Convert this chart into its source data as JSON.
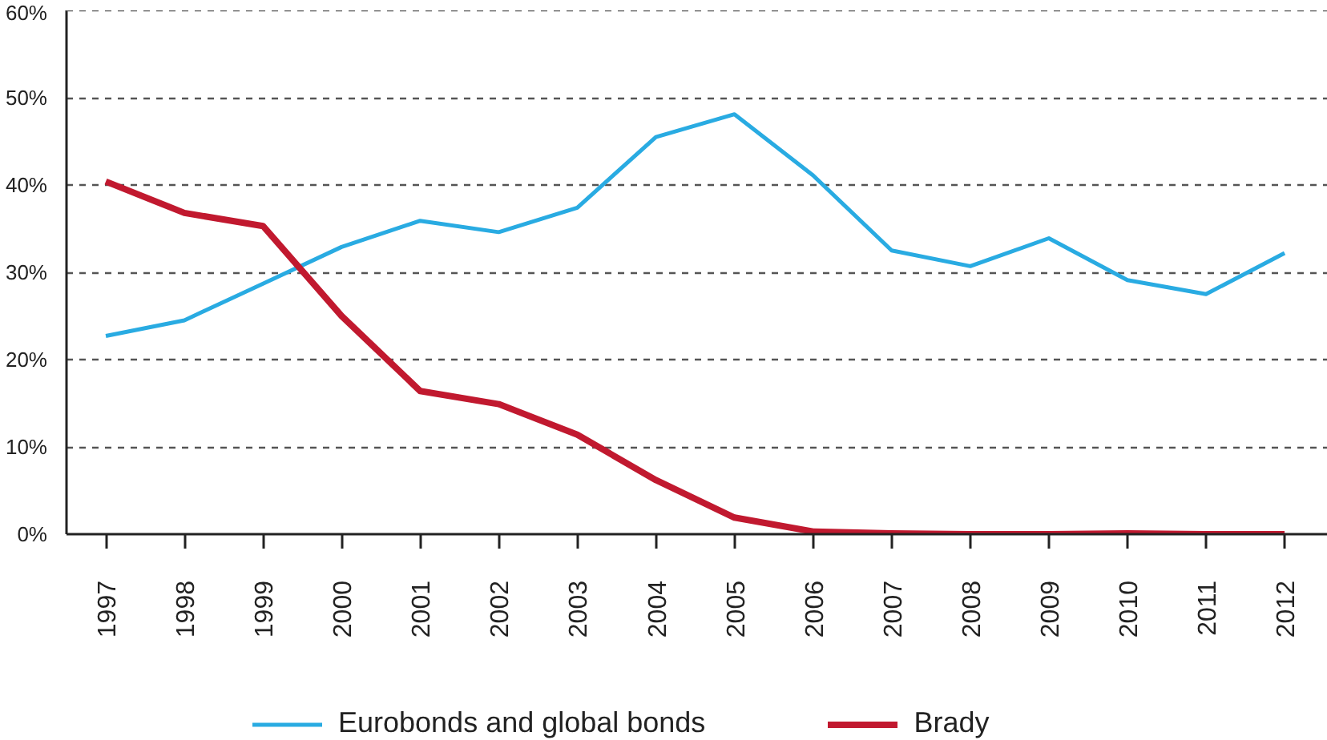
{
  "chart_data": {
    "type": "line",
    "categories": [
      "1997",
      "1998",
      "1999",
      "2000",
      "2001",
      "2002",
      "2003",
      "2004",
      "2005",
      "2006",
      "2007",
      "2008",
      "2009",
      "2010",
      "2011",
      "2012"
    ],
    "series": [
      {
        "name": "Eurobonds and global bonds",
        "color": "#29abe2",
        "values": [
          22.7,
          24.5,
          28.7,
          32.9,
          35.9,
          34.6,
          37.4,
          45.5,
          48.1,
          41.1,
          32.5,
          30.7,
          33.9,
          29.1,
          27.5,
          32.2
        ]
      },
      {
        "name": "Brady",
        "color": "#c1192f",
        "values": [
          40.4,
          36.8,
          35.3,
          25.0,
          16.4,
          14.9,
          11.4,
          6.2,
          1.9,
          0.3,
          0.1,
          0.0,
          0.0,
          0.1,
          0.0,
          0.0
        ]
      }
    ],
    "ylim": [
      0,
      60
    ],
    "yticks": [
      {
        "value": 0,
        "label": "0%"
      },
      {
        "value": 10,
        "label": "10%"
      },
      {
        "value": 20,
        "label": "20%"
      },
      {
        "value": 30,
        "label": "30%"
      },
      {
        "value": 40,
        "label": "40%"
      },
      {
        "value": 50,
        "label": "50%"
      },
      {
        "value": 60,
        "label": "60%"
      }
    ],
    "grid": "y",
    "legend": "bottom",
    "line_style": "solid"
  }
}
